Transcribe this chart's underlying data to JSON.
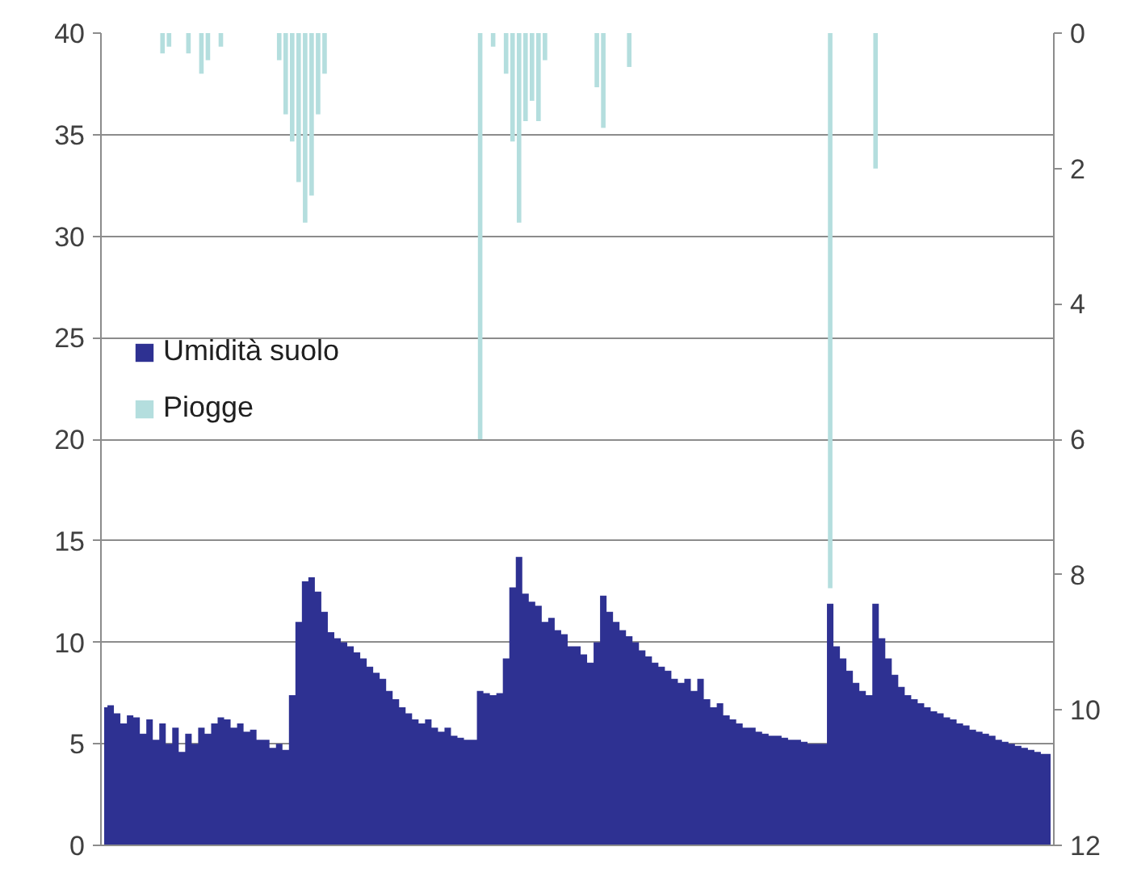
{
  "chart_data": {
    "type": "area",
    "categories": [
      null,
      null,
      null,
      null,
      null,
      null,
      null,
      null,
      null,
      null,
      null,
      null,
      null,
      null,
      null,
      null,
      null,
      null,
      null,
      null,
      null,
      null,
      null,
      null,
      null,
      null,
      null,
      null,
      null,
      null,
      null,
      null,
      null,
      null,
      null,
      null,
      null,
      null,
      null,
      null,
      null,
      null,
      null,
      null,
      null,
      null,
      null,
      null,
      null,
      null,
      null,
      null,
      null,
      null,
      null,
      null,
      null,
      null,
      null,
      null,
      null,
      null,
      null,
      null,
      null,
      null,
      null,
      null,
      null,
      null,
      null,
      null,
      null,
      null,
      null,
      null,
      null,
      null,
      null,
      null,
      null,
      null,
      null,
      null,
      null,
      null,
      null,
      null,
      null,
      null,
      null,
      null,
      null,
      null,
      null,
      null,
      null,
      null,
      null,
      null,
      null,
      null,
      null,
      null,
      null,
      null,
      null,
      null,
      null,
      null,
      null,
      null,
      null,
      null,
      null,
      null,
      null,
      null,
      null,
      null,
      null,
      null,
      null,
      null,
      null,
      null,
      null,
      null,
      null,
      null,
      null,
      null,
      null,
      null,
      null,
      null,
      null,
      null,
      null,
      null,
      null,
      null,
      null,
      null,
      null,
      null,
      null
    ],
    "series": [
      {
        "name": "Umidità suolo",
        "color": "#2e3192",
        "values": [
          6.8,
          6.9,
          6.5,
          6.0,
          6.4,
          6.3,
          5.5,
          6.2,
          5.2,
          6.0,
          5.0,
          5.8,
          4.6,
          5.5,
          5.0,
          5.8,
          5.5,
          6.0,
          6.3,
          6.2,
          5.8,
          6.0,
          5.6,
          5.7,
          5.2,
          5.2,
          4.8,
          5.0,
          4.7,
          7.4,
          11.0,
          13.0,
          13.2,
          12.5,
          11.5,
          10.5,
          10.2,
          10.0,
          9.8,
          9.5,
          9.2,
          8.8,
          8.5,
          8.2,
          7.6,
          7.2,
          6.8,
          6.5,
          6.2,
          6.0,
          6.2,
          5.8,
          5.6,
          5.8,
          5.4,
          5.3,
          5.2,
          5.2,
          7.6,
          7.5,
          7.4,
          7.5,
          9.2,
          12.7,
          14.2,
          12.4,
          12.0,
          11.8,
          11.0,
          11.2,
          10.6,
          10.4,
          9.8,
          9.8,
          9.4,
          9.0,
          10.0,
          12.3,
          11.5,
          11.0,
          10.6,
          10.3,
          10.0,
          9.6,
          9.3,
          9.0,
          8.8,
          8.6,
          8.2,
          8.0,
          8.2,
          7.6,
          8.2,
          7.2,
          6.8,
          7.0,
          6.4,
          6.2,
          6.0,
          5.8,
          5.8,
          5.6,
          5.5,
          5.4,
          5.4,
          5.3,
          5.2,
          5.2,
          5.1,
          5.0,
          5.0,
          5.0,
          11.9,
          9.8,
          9.2,
          8.6,
          8.0,
          7.6,
          7.4,
          11.9,
          10.2,
          9.2,
          8.4,
          7.8,
          7.4,
          7.2,
          7.0,
          6.8,
          6.6,
          6.5,
          6.3,
          6.2,
          6.0,
          5.9,
          5.7,
          5.6,
          5.5,
          5.4,
          5.2,
          5.1,
          5.0,
          4.9,
          4.8,
          4.7,
          4.6,
          4.5,
          4.5
        ]
      },
      {
        "name": "Piogge",
        "type": "bar",
        "axis": "y2",
        "color": "#b4dede",
        "values": [
          null,
          null,
          null,
          null,
          null,
          null,
          null,
          null,
          null,
          0.3,
          0.2,
          null,
          null,
          0.3,
          null,
          0.6,
          0.4,
          null,
          0.2,
          null,
          null,
          null,
          null,
          null,
          null,
          null,
          null,
          0.4,
          1.2,
          1.6,
          2.2,
          2.8,
          2.4,
          1.2,
          0.6,
          null,
          null,
          null,
          null,
          null,
          null,
          null,
          null,
          null,
          null,
          null,
          null,
          null,
          null,
          null,
          null,
          null,
          null,
          null,
          null,
          null,
          null,
          null,
          6.0,
          null,
          0.2,
          null,
          0.6,
          1.6,
          2.8,
          1.3,
          1.0,
          1.3,
          0.4,
          null,
          null,
          null,
          null,
          null,
          null,
          null,
          0.8,
          1.4,
          null,
          null,
          null,
          0.5,
          null,
          null,
          null,
          null,
          null,
          null,
          null,
          null,
          null,
          null,
          null,
          null,
          null,
          null,
          null,
          null,
          null,
          null,
          null,
          null,
          null,
          null,
          null,
          null,
          null,
          null,
          null,
          null,
          null,
          null,
          8.2,
          null,
          null,
          null,
          null,
          null,
          null,
          2.0,
          null,
          null,
          null,
          null,
          null,
          null,
          null,
          null,
          null,
          null,
          null,
          null,
          null,
          null,
          null,
          null,
          null,
          null,
          null,
          null,
          null,
          null,
          null,
          null,
          null,
          null,
          null
        ]
      }
    ],
    "ylim": [
      0,
      40
    ],
    "yticks": [
      0,
      5,
      10,
      15,
      20,
      25,
      30,
      35,
      40
    ],
    "y2lim": [
      12,
      0
    ],
    "y2ticks": [
      0,
      2,
      4,
      6,
      8,
      10,
      12
    ],
    "grid": "y",
    "legend": "left"
  }
}
